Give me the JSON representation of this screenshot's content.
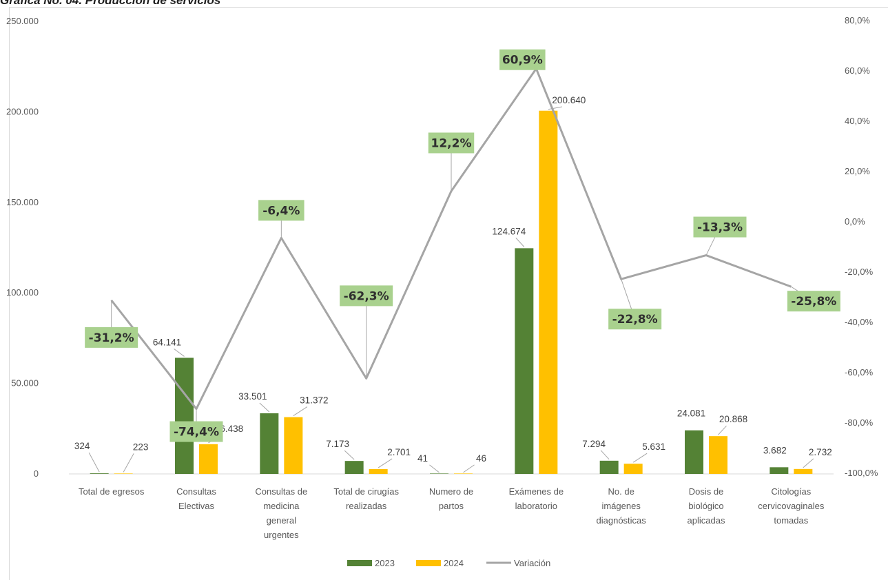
{
  "chart_data": {
    "type": "bar",
    "title": "Gráfica No. 04. Producción de servicios",
    "categories": [
      "Total de egresos",
      "Consultas Electivas",
      "Consultas de medicina general urgentes",
      "Total de cirugías realizadas",
      "Numero de partos",
      "Exámenes de laboratorio",
      "No. de imágenes diagnósticas",
      "Dosis de biológico aplicadas",
      "Citologías cervicovaginales tomadas"
    ],
    "category_lines": [
      [
        "Total de egresos"
      ],
      [
        "Consultas",
        "Electivas"
      ],
      [
        "Consultas de",
        "medicina",
        "general",
        "urgentes"
      ],
      [
        "Total de cirugías",
        "realizadas"
      ],
      [
        "Numero de",
        "partos"
      ],
      [
        "Exámenes de",
        "laboratorio"
      ],
      [
        "No. de",
        "imágenes",
        "diagnósticas"
      ],
      [
        "Dosis de",
        "biológico",
        "aplicadas"
      ],
      [
        "Citologías",
        "cervicovaginales",
        "tomadas"
      ]
    ],
    "series": [
      {
        "name": "2023",
        "type": "bar",
        "axis": "primary",
        "color": "#548235",
        "values": [
          324,
          64141,
          33501,
          7173,
          41,
          124674,
          7294,
          24081,
          3682
        ],
        "labels": [
          "324",
          "64.141",
          "33.501",
          "7.173",
          "41",
          "124.674",
          "7.294",
          "24.081",
          "3.682"
        ]
      },
      {
        "name": "2024",
        "type": "bar",
        "axis": "primary",
        "color": "#FFC000",
        "values": [
          223,
          16438,
          31372,
          2701,
          46,
          200640,
          5631,
          20868,
          2732
        ],
        "labels": [
          "223",
          "16.438",
          "31.372",
          "2.701",
          "46",
          "200.640",
          "5.631",
          "20.868",
          "2.732"
        ]
      },
      {
        "name": "Variación",
        "type": "line",
        "axis": "secondary",
        "color": "#A5A5A5",
        "values": [
          -31.2,
          -74.4,
          -6.4,
          -62.3,
          12.2,
          60.9,
          -22.8,
          -13.3,
          -25.8
        ],
        "labels": [
          "-31,2%",
          "-74,4%",
          "-6,4%",
          "-62,3%",
          "12,2%",
          "60,9%",
          "-22,8%",
          "-13,3%",
          "-25,8%"
        ]
      }
    ],
    "ylim": [
      0,
      250000
    ],
    "y_ticks": [
      0,
      50000,
      100000,
      150000,
      200000,
      250000
    ],
    "y_tick_labels": [
      "0",
      "50.000",
      "100.000",
      "150.000",
      "200.000",
      "250.000"
    ],
    "y2lim": [
      -100,
      80
    ],
    "y2_ticks": [
      -100,
      -80,
      -60,
      -40,
      -20,
      0,
      20,
      40,
      60,
      80
    ],
    "y2_tick_labels": [
      "-100,0%",
      "-80,0%",
      "-60,0%",
      "-40,0%",
      "-20,0%",
      "0,0%",
      "20,0%",
      "40,0%",
      "60,0%",
      "80,0%"
    ],
    "variation_label_color": "#A9D18E",
    "grid": false,
    "legend_position": "bottom",
    "legend": [
      "2023",
      "2024",
      "Variación"
    ]
  }
}
